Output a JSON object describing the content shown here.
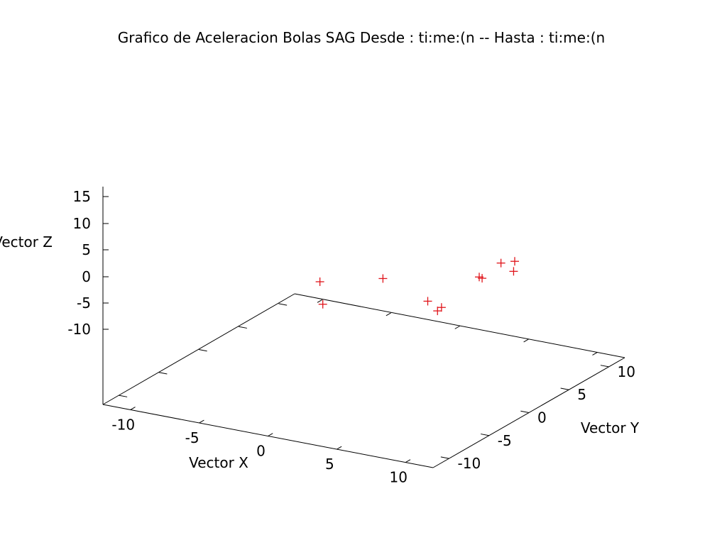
{
  "chart_data": {
    "type": "scatter",
    "title": "Grafico de Aceleracion Bolas SAG Desde : ti:me:(n -- Hasta : ti:me:(n",
    "xlabel": "Vector X",
    "ylabel": "Vector Y",
    "zlabel": "Vector Z",
    "x_ticks": [
      "-10",
      "-5",
      "0",
      "5",
      "10"
    ],
    "y_ticks": [
      "-10",
      "-5",
      "0",
      "5",
      "10"
    ],
    "z_ticks": [
      "15",
      "10",
      "5",
      "0",
      "-5",
      "-10"
    ],
    "series_color": "#e0141a",
    "marker": "plus",
    "points": [
      {
        "x": -9,
        "y": 10,
        "z": -2.5
      },
      {
        "x": -8.5,
        "y": 9.5,
        "z": -6.5
      },
      {
        "x": -5,
        "y": 11,
        "z": -1.5
      },
      {
        "x": 2,
        "y": 11,
        "z": 0
      },
      {
        "x": 2.5,
        "y": 10.5,
        "z": 0
      },
      {
        "x": 3,
        "y": 12,
        "z": 2.5
      },
      {
        "x": 4,
        "y": 12,
        "z": 3
      },
      {
        "x": 4.5,
        "y": 11,
        "z": 1.5
      },
      {
        "x": 0,
        "y": 8,
        "z": -4
      },
      {
        "x": 1,
        "y": 8,
        "z": -5
      },
      {
        "x": 1,
        "y": 7.5,
        "z": -5.5
      }
    ]
  }
}
